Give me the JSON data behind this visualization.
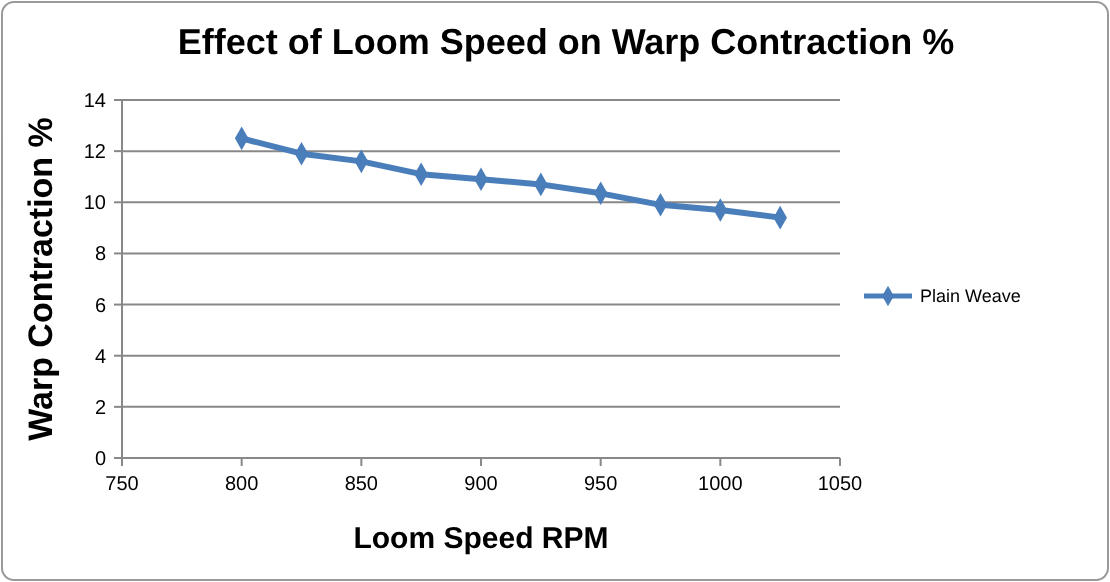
{
  "chart_data": {
    "type": "line",
    "title": "Effect of Loom Speed on Warp Contraction %",
    "xlabel": "Loom Speed RPM",
    "ylabel": "Warp Contraction %",
    "x": [
      800,
      825,
      850,
      875,
      900,
      925,
      950,
      975,
      1000,
      1025
    ],
    "series": [
      {
        "name": "Plain Weave",
        "color": "#4a7ebb",
        "values": [
          12.5,
          11.9,
          11.6,
          11.1,
          10.9,
          10.7,
          10.35,
          9.9,
          9.7,
          9.4
        ]
      }
    ],
    "xlim": [
      750,
      1050
    ],
    "xticks": [
      750,
      800,
      850,
      900,
      950,
      1000,
      1050
    ],
    "ylim": [
      0,
      14
    ],
    "yticks": [
      0,
      2,
      4,
      6,
      8,
      10,
      12,
      14
    ],
    "grid": "y",
    "legend": "right",
    "marker": "diamond",
    "line_style": "solid"
  }
}
